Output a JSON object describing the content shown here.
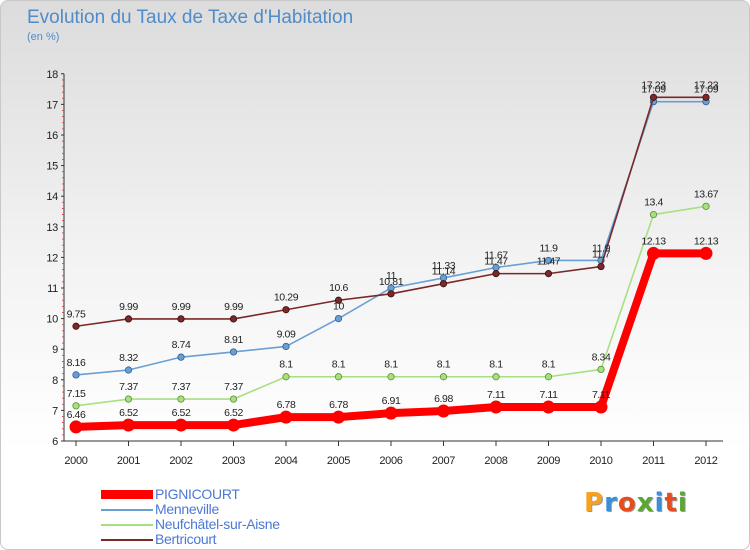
{
  "chart_data": {
    "type": "line",
    "title": "Evolution du Taux de Taxe d'Habitation",
    "subtitle": "(en %)",
    "x": [
      "2000",
      "2001",
      "2002",
      "2003",
      "2004",
      "2005",
      "2006",
      "2007",
      "2008",
      "2009",
      "2010",
      "2011",
      "2012"
    ],
    "ylim": [
      6,
      18
    ],
    "yticks": [
      "6",
      "7",
      "8",
      "9",
      "10",
      "11",
      "12",
      "13",
      "14",
      "15",
      "16",
      "17",
      "18"
    ],
    "grid": false,
    "legend_position": "bottom-left",
    "series": [
      {
        "name": "PIGNICOURT",
        "color": "#ff0000",
        "values": [
          6.46,
          6.52,
          6.52,
          6.52,
          6.78,
          6.78,
          6.91,
          6.98,
          7.11,
          7.11,
          7.11,
          12.13,
          12.13
        ],
        "labels": [
          "6.46",
          "6.52",
          "6.52",
          "6.52",
          "6.78",
          "6.78",
          "6.91",
          "6.98",
          "7.11",
          "7.11",
          "7.11",
          "12.13",
          "12.13"
        ]
      },
      {
        "name": "Menneville",
        "color": "#6a9fd4",
        "values": [
          8.16,
          8.32,
          8.74,
          8.91,
          9.09,
          10,
          11,
          11.33,
          11.67,
          11.9,
          11.9,
          17.09,
          17.09
        ],
        "labels": [
          "8.16",
          "8.32",
          "8.74",
          "8.91",
          "9.09",
          "10",
          "11",
          "11.33",
          "11.67",
          "11.9",
          "11.9",
          "17.09",
          "17.09"
        ]
      },
      {
        "name": "Neufchâtel-sur-Aisne",
        "color": "#a8e080",
        "values": [
          7.15,
          7.37,
          7.37,
          7.37,
          8.1,
          8.1,
          8.1,
          8.1,
          8.1,
          8.1,
          8.34,
          13.4,
          13.67
        ],
        "labels": [
          "7.15",
          "7.37",
          "7.37",
          "7.37",
          "8.1",
          "8.1",
          "8.1",
          "8.1",
          "8.1",
          "8.1",
          "8.34",
          "13.4",
          "13.67"
        ]
      },
      {
        "name": "Bertricourt",
        "color": "#7a2828",
        "values": [
          9.75,
          9.99,
          9.99,
          9.99,
          10.29,
          10.6,
          10.81,
          11.14,
          11.47,
          11.47,
          11.7,
          17.23,
          17.23
        ],
        "labels": [
          "9.75",
          "9.99",
          "9.99",
          "9.99",
          "10.29",
          "10.6",
          "10.81",
          "11.14",
          "11.47",
          "11.47",
          "11.7",
          "17.23",
          "17.23"
        ]
      }
    ]
  },
  "logo": {
    "text": "Proxiti",
    "colors": [
      "#f4a21f",
      "#3b8fd9",
      "#e84b1c",
      "#5aa832",
      "#3b8fd9",
      "#e84b1c",
      "#5aa832"
    ]
  }
}
